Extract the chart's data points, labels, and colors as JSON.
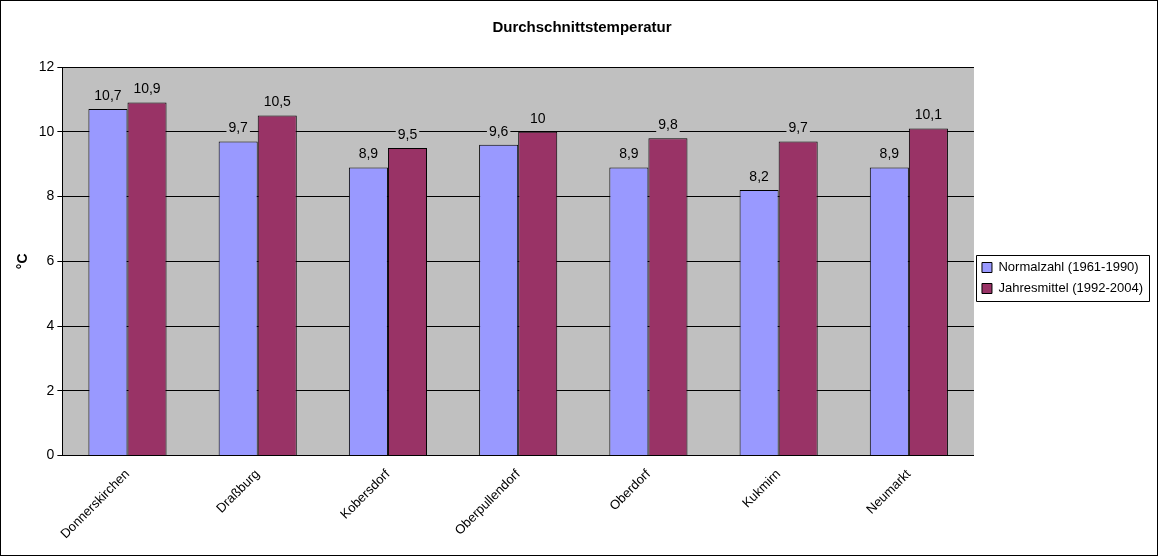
{
  "chart_data": {
    "type": "bar",
    "title": "Durchschnittstemperatur",
    "ylabel": "°C",
    "categories": [
      "Donnerskirchen",
      "Draßburg",
      "Kobersdorf",
      "Oberpullendorf",
      "Oberdorf",
      "Kukmirn",
      "Neumarkt"
    ],
    "series": [
      {
        "name": "Normalzahl (1961-1990)",
        "color": "#9999ff",
        "values": [
          10.7,
          9.7,
          8.9,
          9.6,
          8.9,
          8.2,
          8.9
        ],
        "value_labels": [
          "10,7",
          "9,7",
          "8,9",
          "9,6",
          "8,9",
          "8,2",
          "8,9"
        ]
      },
      {
        "name": "Jahresmittel (1992-2004)",
        "color": "#993366",
        "values": [
          10.9,
          10.5,
          9.5,
          10,
          9.8,
          9.7,
          10.1
        ],
        "value_labels": [
          "10,9",
          "10,5",
          "9,5",
          "10",
          "9,8",
          "9,7",
          "10,1"
        ]
      }
    ],
    "ylim": [
      0,
      12
    ],
    "yticks": [
      0,
      2,
      4,
      6,
      8,
      10,
      12
    ],
    "grid": "y",
    "legend": "right"
  }
}
